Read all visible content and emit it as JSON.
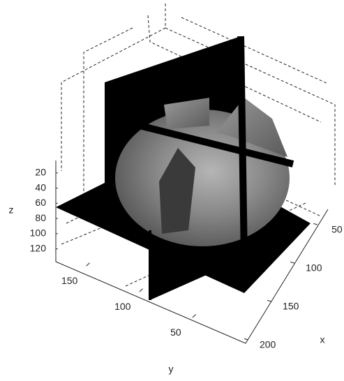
{
  "chart_data": {
    "type": "slice3d",
    "xlabel": "x",
    "ylabel": "y",
    "zlabel": "z",
    "xlim": [
      0,
      210
    ],
    "xticks": [
      50,
      100,
      150,
      200
    ],
    "ylim": [
      0,
      180
    ],
    "yticks": [
      50,
      100,
      150
    ],
    "zlim": [
      0,
      135
    ],
    "zticks": [
      20,
      40,
      60,
      80,
      100,
      120
    ],
    "zdir": "reverse"
  }
}
